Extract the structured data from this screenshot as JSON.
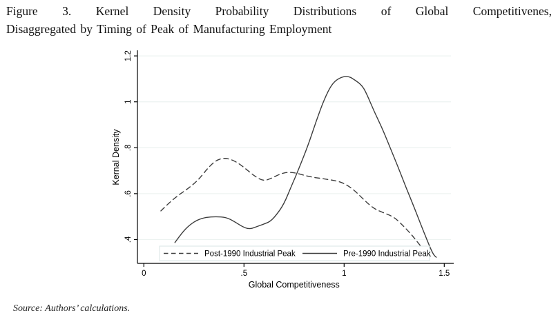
{
  "title": {
    "line1": "Figure 3. Kernel Density Probability Distributions of Global Competitivenes,",
    "line2": "Disaggregated by Timing of Peak of Manufacturing Employment"
  },
  "source_note": "Source: Authors’ calculations.",
  "colors": {
    "background": "#ffffff",
    "axis": "#000000",
    "curve": "#3d3d3d",
    "grid": "#edf3f1",
    "legend_border": "#d8e6e4",
    "legend_background": "#ffffff",
    "text": "#000000"
  },
  "chart_data": {
    "type": "line",
    "title": "",
    "xlabel": "Global Competitiveness",
    "ylabel": "Kernal Density",
    "xlim": [
      0,
      1.5
    ],
    "ylim": [
      0.29,
      1.26
    ],
    "grid": "horizontal",
    "legend_position": "bottom-inside",
    "xticks": [
      {
        "v": 0,
        "label": "0"
      },
      {
        "v": 0.5,
        "label": ".5"
      },
      {
        "v": 1,
        "label": "1"
      },
      {
        "v": 1.5,
        "label": "1.5"
      }
    ],
    "yticks": [
      {
        "v": 0.4,
        "label": ".4"
      },
      {
        "v": 0.6,
        "label": ".6"
      },
      {
        "v": 0.8,
        "label": ".8"
      },
      {
        "v": 1,
        "label": "1"
      },
      {
        "v": 1.2,
        "label": "1.2"
      }
    ],
    "series": [
      {
        "name": "Post-1990 Industrial Peak",
        "style": "dashed",
        "points": [
          [
            0.085,
            0.525
          ],
          [
            0.12,
            0.555
          ],
          [
            0.16,
            0.585
          ],
          [
            0.2,
            0.61
          ],
          [
            0.24,
            0.635
          ],
          [
            0.28,
            0.668
          ],
          [
            0.32,
            0.712
          ],
          [
            0.36,
            0.745
          ],
          [
            0.4,
            0.756
          ],
          [
            0.44,
            0.748
          ],
          [
            0.48,
            0.728
          ],
          [
            0.52,
            0.7
          ],
          [
            0.56,
            0.672
          ],
          [
            0.6,
            0.655
          ],
          [
            0.64,
            0.668
          ],
          [
            0.68,
            0.686
          ],
          [
            0.72,
            0.694
          ],
          [
            0.76,
            0.69
          ],
          [
            0.8,
            0.68
          ],
          [
            0.84,
            0.672
          ],
          [
            0.88,
            0.667
          ],
          [
            0.92,
            0.662
          ],
          [
            0.96,
            0.656
          ],
          [
            1.0,
            0.645
          ],
          [
            1.05,
            0.616
          ],
          [
            1.1,
            0.572
          ],
          [
            1.15,
            0.534
          ],
          [
            1.2,
            0.516
          ],
          [
            1.25,
            0.498
          ],
          [
            1.3,
            0.456
          ],
          [
            1.35,
            0.408
          ],
          [
            1.4,
            0.352
          ],
          [
            1.43,
            0.328
          ]
        ]
      },
      {
        "name": "Pre-1990 Industrial Peak",
        "style": "solid",
        "points": [
          [
            0.155,
            0.387
          ],
          [
            0.19,
            0.43
          ],
          [
            0.23,
            0.465
          ],
          [
            0.27,
            0.487
          ],
          [
            0.31,
            0.497
          ],
          [
            0.36,
            0.5
          ],
          [
            0.41,
            0.497
          ],
          [
            0.45,
            0.48
          ],
          [
            0.49,
            0.457
          ],
          [
            0.525,
            0.445
          ],
          [
            0.56,
            0.455
          ],
          [
            0.6,
            0.468
          ],
          [
            0.63,
            0.478
          ],
          [
            0.66,
            0.505
          ],
          [
            0.7,
            0.555
          ],
          [
            0.74,
            0.64
          ],
          [
            0.77,
            0.7
          ],
          [
            0.82,
            0.81
          ],
          [
            0.86,
            0.915
          ],
          [
            0.9,
            1.01
          ],
          [
            0.94,
            1.08
          ],
          [
            0.98,
            1.106
          ],
          [
            1.02,
            1.113
          ],
          [
            1.06,
            1.092
          ],
          [
            1.09,
            1.07
          ],
          [
            1.11,
            1.04
          ],
          [
            1.15,
            0.958
          ],
          [
            1.19,
            0.885
          ],
          [
            1.23,
            0.8
          ],
          [
            1.27,
            0.715
          ],
          [
            1.31,
            0.625
          ],
          [
            1.35,
            0.54
          ],
          [
            1.39,
            0.45
          ],
          [
            1.42,
            0.385
          ],
          [
            1.445,
            0.335
          ],
          [
            1.46,
            0.323
          ]
        ]
      }
    ]
  }
}
